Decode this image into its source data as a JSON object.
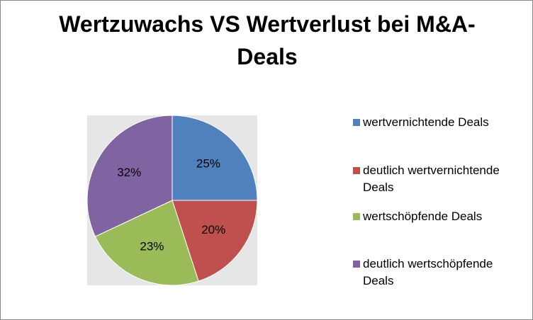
{
  "chart_data": {
    "type": "pie",
    "title": "Wertzuwachs VS Wertverlust bei M&A-Deals",
    "categories": [
      "wertvernichtende Deals",
      "deutlich wertvernichtende Deals",
      "wertschöpfende Deals",
      "deutlich wertschöpfende Deals"
    ],
    "values": [
      25,
      20,
      23,
      32
    ],
    "value_labels": [
      "25%",
      "20%",
      "23%",
      "32%"
    ],
    "colors": [
      "#4f81bd",
      "#c0504d",
      "#9bbb59",
      "#8064a2"
    ],
    "legend": "right"
  }
}
